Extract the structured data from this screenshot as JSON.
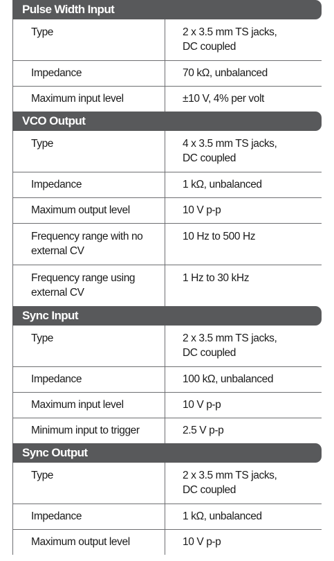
{
  "sections": [
    {
      "title": "Pulse Width Input",
      "rows": [
        {
          "label": "Type",
          "value": "2 x 3.5 mm TS jacks,\nDC coupled"
        },
        {
          "label": "Impedance",
          "value": "70 kΩ, unbalanced"
        },
        {
          "label": "Maximum input level",
          "value": "±10 V, 4% per volt"
        }
      ]
    },
    {
      "title": "VCO Output",
      "rows": [
        {
          "label": "Type",
          "value": "4 x 3.5 mm TS jacks,\nDC coupled"
        },
        {
          "label": "Impedance",
          "value": "1 kΩ, unbalanced"
        },
        {
          "label": "Maximum output level",
          "value": "10 V p-p"
        },
        {
          "label": "Frequency range with no\nexternal CV",
          "value": "10 Hz to 500 Hz"
        },
        {
          "label": "Frequency range using\nexternal CV",
          "value": "1 Hz to 30 kHz"
        }
      ]
    },
    {
      "title": "Sync Input",
      "rows": [
        {
          "label": "Type",
          "value": "2 x 3.5 mm TS jacks,\nDC coupled"
        },
        {
          "label": "Impedance",
          "value": "100 kΩ, unbalanced"
        },
        {
          "label": "Maximum input level",
          "value": "10 V p-p"
        },
        {
          "label": "Minimum input to trigger",
          "value": "2.5 V p-p"
        }
      ]
    },
    {
      "title": "Sync Output",
      "rows": [
        {
          "label": "Type",
          "value": "2 x 3.5 mm TS jacks,\nDC coupled"
        },
        {
          "label": "Impedance",
          "value": "1 kΩ, unbalanced"
        },
        {
          "label": "Maximum output level",
          "value": "10 V p-p"
        }
      ]
    }
  ]
}
